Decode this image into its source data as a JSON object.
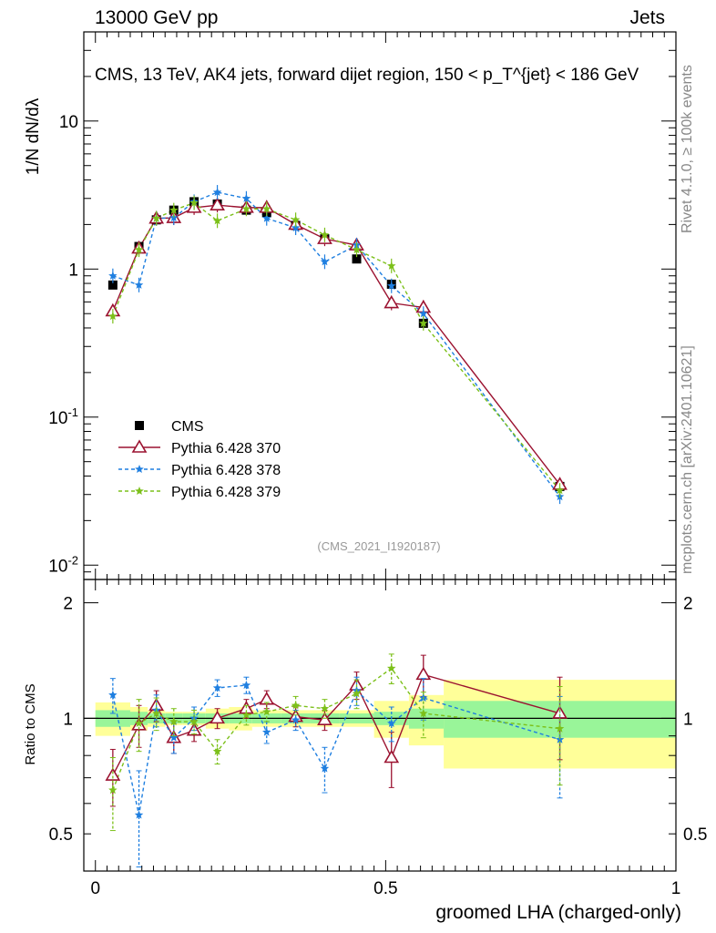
{
  "header": {
    "energy_label": "13000 GeV pp",
    "category_label": "Jets",
    "analysis_title": "CMS, 13 TeV, AK4 jets, forward dijet region, 150 < p_T^{jet} < 186 GeV"
  },
  "side_labels": {
    "rivet": "Rivet 4.1.0, ≥ 100k events",
    "mcplots": "mcplots.cern.ch [arXiv:2401.10621]"
  },
  "watermark": "(CMS_2021_I1920187)",
  "colors": {
    "data": "#000000",
    "p370": "#9b1230",
    "p378": "#1f7fe0",
    "p379": "#7cc01a",
    "band_stat": "#99f599",
    "band_total": "#ffff99"
  },
  "chart_data": [
    {
      "type": "scatter",
      "panel": "main",
      "title": "CMS, 13 TeV, AK4 jets, forward dijet region, 150 < p_T^{jet} < 186 GeV",
      "xlabel": "groomed LHA (charged-only)",
      "ylabel": "1/N dN/dλ",
      "yscale": "log",
      "ylim": [
        0.008,
        40
      ],
      "xlim": [
        -0.02,
        1.0
      ],
      "y_tick_labels": [
        {
          "value": 0.01,
          "label": "10^-2"
        },
        {
          "value": 0.1,
          "label": "10^-1"
        },
        {
          "value": 1,
          "label": "1"
        },
        {
          "value": 10,
          "label": "10"
        }
      ],
      "legend": [
        {
          "key": "cms",
          "label": "CMS"
        },
        {
          "key": "p370",
          "label": "Pythia 6.428 370"
        },
        {
          "key": "p378",
          "label": "Pythia 6.428 378"
        },
        {
          "key": "p379",
          "label": "Pythia 6.428 379"
        }
      ],
      "x": [
        0.03,
        0.075,
        0.105,
        0.135,
        0.17,
        0.21,
        0.26,
        0.295,
        0.345,
        0.395,
        0.45,
        0.51,
        0.565,
        0.8
      ],
      "series": [
        {
          "key": "cms",
          "name": "CMS",
          "values": [
            0.78,
            1.42,
            2.15,
            2.5,
            2.85,
            2.75,
            2.5,
            2.4,
            1.97,
            1.6,
            1.17,
            0.79,
            0.43,
            0.034
          ]
        },
        {
          "key": "p370",
          "name": "Pythia 6.428 370",
          "values": [
            0.52,
            1.38,
            2.2,
            2.22,
            2.6,
            2.7,
            2.6,
            2.6,
            2.0,
            1.6,
            1.45,
            0.59,
            0.55,
            0.035
          ]
        },
        {
          "key": "p378",
          "name": "Pythia 6.428 378",
          "values": [
            0.9,
            0.78,
            2.2,
            2.22,
            2.85,
            3.3,
            3.0,
            2.2,
            1.9,
            1.12,
            1.45,
            0.77,
            0.5,
            0.029
          ]
        },
        {
          "key": "p379",
          "name": "Pythia 6.428 379",
          "values": [
            0.48,
            1.35,
            2.2,
            2.5,
            2.8,
            2.12,
            2.55,
            2.55,
            2.15,
            1.7,
            1.35,
            1.05,
            0.43,
            0.032
          ]
        }
      ]
    },
    {
      "type": "scatter",
      "panel": "ratio",
      "xlabel": "groomed LHA (charged-only)",
      "ylabel": "Ratio to CMS",
      "ylim": [
        0.4,
        2.3
      ],
      "xlim": [
        -0.02,
        1.0
      ],
      "x_ticks": [
        0,
        0.5,
        1
      ],
      "x_tick_labels": [
        "0",
        "0.5",
        "1"
      ],
      "y_tick_labels": [
        "0.5",
        "1",
        "2"
      ],
      "bin_edges": [
        0,
        0.06,
        0.09,
        0.12,
        0.15,
        0.19,
        0.23,
        0.27,
        0.32,
        0.37,
        0.42,
        0.48,
        0.54,
        0.6,
        1.0
      ],
      "band_stat_halfwidth": [
        0.05,
        0.04,
        0.03,
        0.03,
        0.03,
        0.03,
        0.03,
        0.03,
        0.03,
        0.03,
        0.03,
        0.04,
        0.06,
        0.11
      ],
      "band_total_halfwidth": [
        0.1,
        0.07,
        0.05,
        0.04,
        0.04,
        0.06,
        0.07,
        0.05,
        0.05,
        0.05,
        0.05,
        0.11,
        0.15,
        0.26
      ],
      "x": [
        0.03,
        0.075,
        0.105,
        0.135,
        0.17,
        0.21,
        0.26,
        0.295,
        0.345,
        0.395,
        0.45,
        0.51,
        0.565,
        0.8
      ],
      "series": [
        {
          "key": "p370",
          "name": "Pythia 6.428 370",
          "values": [
            0.71,
            0.96,
            1.08,
            0.89,
            0.93,
            1.0,
            1.06,
            1.12,
            1.01,
            0.99,
            1.22,
            0.79,
            1.3,
            1.03
          ],
          "errors": [
            0.12,
            0.12,
            0.1,
            0.08,
            0.06,
            0.06,
            0.06,
            0.06,
            0.06,
            0.06,
            0.1,
            0.13,
            0.16,
            0.25
          ]
        },
        {
          "key": "p378",
          "name": "Pythia 6.428 378",
          "values": [
            1.15,
            0.56,
            1.05,
            0.89,
            1.0,
            1.2,
            1.22,
            0.92,
            0.99,
            0.74,
            1.18,
            0.97,
            1.13,
            0.88
          ],
          "errors": [
            0.12,
            0.17,
            0.1,
            0.08,
            0.07,
            0.06,
            0.06,
            0.06,
            0.06,
            0.1,
            0.1,
            0.1,
            0.14,
            0.26
          ]
        },
        {
          "key": "p379",
          "name": "Pythia 6.428 379",
          "values": [
            0.65,
            0.97,
            1.03,
            0.98,
            0.98,
            0.82,
            1.02,
            1.04,
            1.08,
            1.06,
            1.16,
            1.35,
            1.03,
            0.94
          ],
          "errors": [
            0.14,
            0.15,
            0.1,
            0.08,
            0.07,
            0.06,
            0.06,
            0.06,
            0.06,
            0.06,
            0.1,
            0.12,
            0.14,
            0.27
          ]
        }
      ]
    }
  ]
}
